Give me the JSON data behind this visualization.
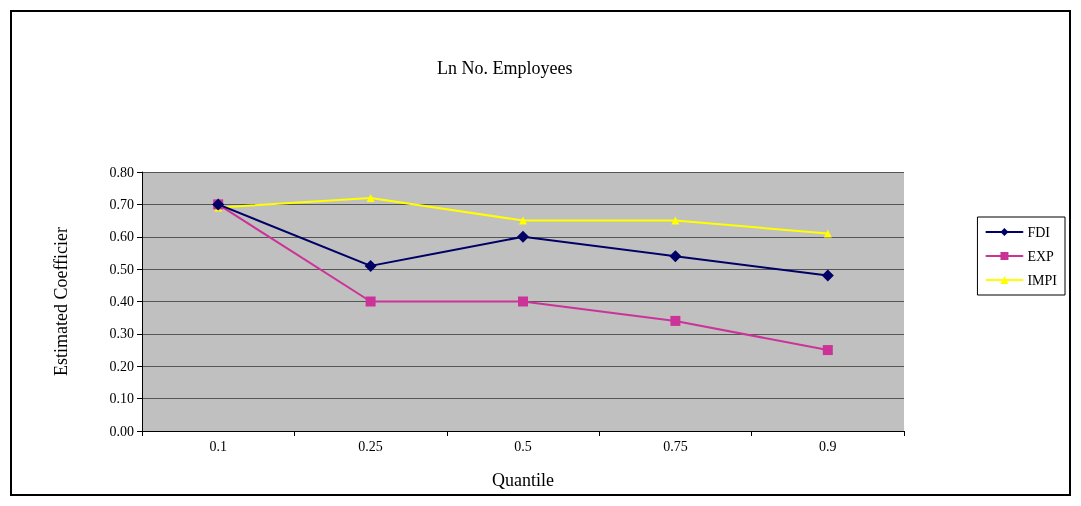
{
  "chart_data": {
    "type": "line",
    "title": "Ln No. Employees",
    "xlabel": "Quantile",
    "ylabel": "Estimated Coefficier",
    "categories": [
      "0.1",
      "0.25",
      "0.5",
      "0.75",
      "0.9"
    ],
    "series": [
      {
        "name": "FDI",
        "color": "#000066",
        "marker": "diamond",
        "values": [
          0.7,
          0.51,
          0.6,
          0.54,
          0.48
        ]
      },
      {
        "name": "EXP",
        "color": "#cc3399",
        "marker": "square",
        "values": [
          0.7,
          0.4,
          0.4,
          0.34,
          0.25
        ]
      },
      {
        "name": "IMPI",
        "color": "#ffff00",
        "marker": "triangle",
        "values": [
          0.69,
          0.72,
          0.65,
          0.65,
          0.61
        ]
      }
    ],
    "ylim": [
      0,
      0.8
    ],
    "yticks": [
      {
        "value": 0,
        "label": "0.00"
      },
      {
        "value": 0.1,
        "label": "0.10"
      },
      {
        "value": 0.2,
        "label": "0.20"
      },
      {
        "value": 0.3,
        "label": "0.30"
      },
      {
        "value": 0.4,
        "label": "0.40"
      },
      {
        "value": 0.5,
        "label": "0.50"
      },
      {
        "value": 0.6,
        "label": "0.60"
      },
      {
        "value": 0.7,
        "label": "0.70"
      },
      {
        "value": 0.8,
        "label": "0.80"
      }
    ],
    "grid": "y",
    "legend": "right"
  }
}
